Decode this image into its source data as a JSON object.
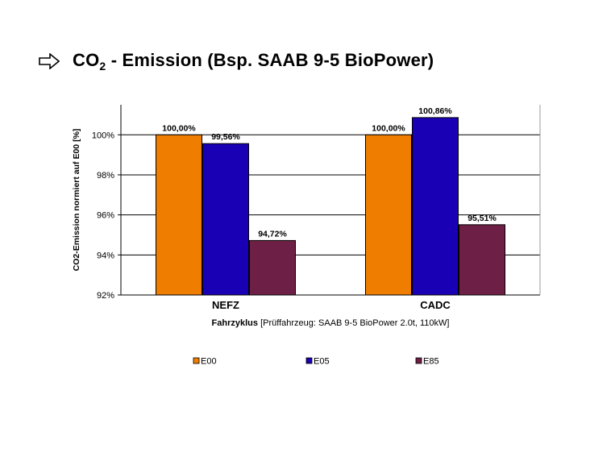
{
  "slide": {
    "title_prefix": "CO",
    "title_sub": "2",
    "title_rest": " - Emission (Bsp. SAAB 9-5 BioPower)",
    "arrow_icon": "right-arrow-outline-icon"
  },
  "chart_data": {
    "type": "bar",
    "categories": [
      "NEFZ",
      "CADC"
    ],
    "series": [
      {
        "name": "E00",
        "color": "#ef7d00",
        "values": [
          100.0,
          100.0
        ],
        "labels": [
          "100,00%",
          "100,00%"
        ]
      },
      {
        "name": "E05",
        "color": "#1a00b4",
        "values": [
          99.56,
          100.86
        ],
        "labels": [
          "99,56%",
          "100,86%"
        ]
      },
      {
        "name": "E85",
        "color": "#6e1f45",
        "values": [
          94.72,
          95.51
        ],
        "labels": [
          "94,72%",
          "95,51%"
        ]
      }
    ],
    "ylabel": "CO2-Emission normiert auf E00 [%]",
    "xlabel_bold": "Fahrzyklus",
    "xlabel_rest": " [Prüffahrzeug: SAAB 9-5 BioPower 2.0t, 110kW]",
    "ylim": [
      92,
      101.5
    ],
    "yticks": [
      92,
      94,
      96,
      98,
      100
    ],
    "ytick_labels": [
      "92%",
      "94%",
      "96%",
      "98%",
      "100%"
    ],
    "grid": true,
    "legend_position": "bottom"
  }
}
